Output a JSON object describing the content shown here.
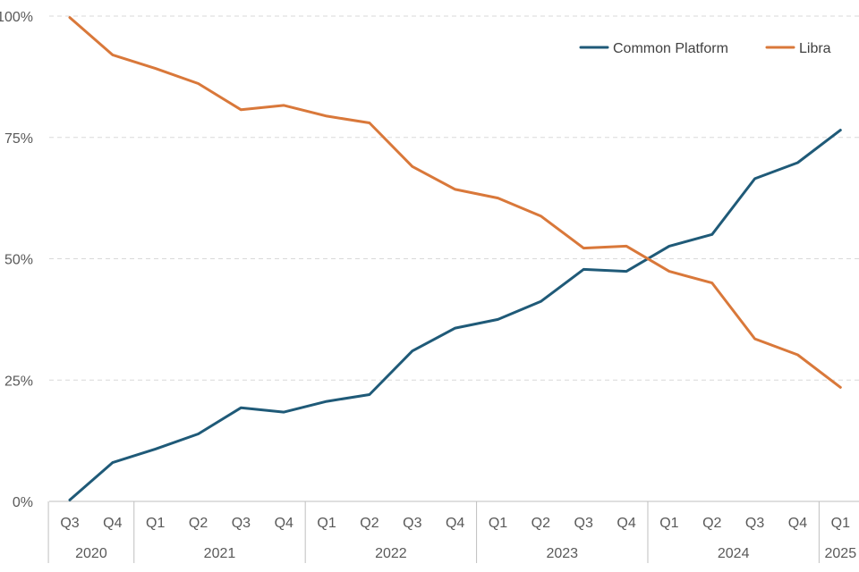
{
  "chart_data": {
    "type": "line",
    "title": "",
    "xlabel": "",
    "ylabel": "",
    "ylim": [
      0,
      100
    ],
    "yticks": [
      0,
      25,
      50,
      75,
      100
    ],
    "ytick_labels": [
      "0%",
      "25%",
      "50%",
      "75%",
      "100%"
    ],
    "categories": [
      "Q3",
      "Q4",
      "Q1",
      "Q2",
      "Q3",
      "Q4",
      "Q1",
      "Q2",
      "Q3",
      "Q4",
      "Q1",
      "Q2",
      "Q3",
      "Q4",
      "Q1",
      "Q2",
      "Q3",
      "Q4",
      "Q1"
    ],
    "years": [
      {
        "label": "2020",
        "span": 2
      },
      {
        "label": "2021",
        "span": 4
      },
      {
        "label": "2022",
        "span": 4
      },
      {
        "label": "2023",
        "span": 4
      },
      {
        "label": "2024",
        "span": 4
      },
      {
        "label": "2025",
        "span": 1
      }
    ],
    "grid": true,
    "legend_position": "top-right",
    "series": [
      {
        "name": "Common Platform",
        "color": "#1f5a78",
        "values": [
          0.3,
          8,
          10.8,
          13.9,
          19.3,
          18.4,
          20.6,
          22,
          31,
          35.7,
          37.5,
          41.2,
          47.8,
          47.4,
          52.6,
          55,
          66.5,
          69.8,
          76.5
        ]
      },
      {
        "name": "Libra",
        "color": "#d9783a",
        "values": [
          99.7,
          92,
          89.2,
          86.1,
          80.7,
          81.6,
          79.4,
          78,
          69,
          64.3,
          62.5,
          58.8,
          52.2,
          52.6,
          47.4,
          45,
          33.5,
          30.2,
          23.5
        ]
      }
    ]
  }
}
